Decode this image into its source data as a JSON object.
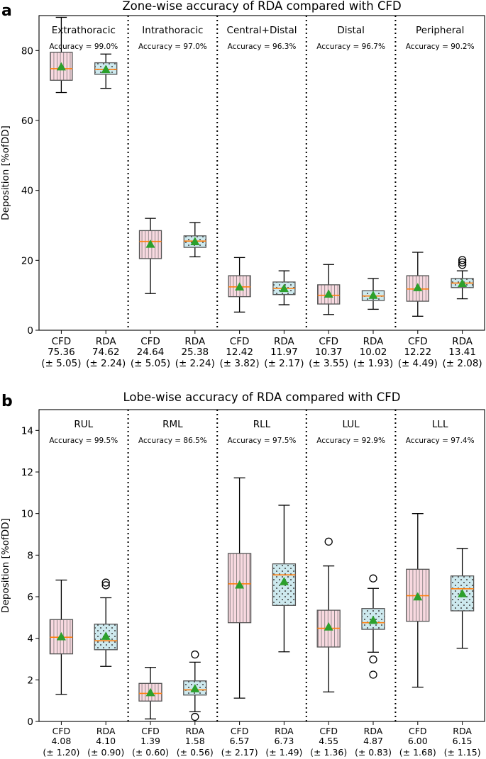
{
  "colors": {
    "cfd_fill": "#f8d9e0",
    "rda_fill": "#cde9ee",
    "median": "#ff7f0e",
    "mean": "#2ca02c",
    "pattern": "#555555"
  },
  "chart_data": [
    {
      "type": "box",
      "panel_letter": "a",
      "title": "Zone-wise accuracy of RDA compared with CFD",
      "ylabel": "Deposition [%ofDD]",
      "ylim": [
        0,
        90
      ],
      "yticks": [
        "0",
        "20",
        "40",
        "60",
        "80"
      ],
      "ytick_values": [
        0,
        20,
        40,
        60,
        80
      ],
      "groups": [
        {
          "name": "Extrathoracic",
          "accuracy": "Accuracy = 99.0%",
          "boxes": [
            {
              "label": "CFD",
              "value": "75.36",
              "sd": "(± 5.05)",
              "q1": 71.5,
              "q3": 79.5,
              "median": 74.8,
              "mean": 75.36,
              "whisker_low": 68,
              "whisker_high": 89.5,
              "outliers": []
            },
            {
              "label": "RDA",
              "value": "74.62",
              "sd": "(± 2.24)",
              "q1": 73.2,
              "q3": 76.5,
              "median": 74.6,
              "mean": 74.62,
              "whisker_low": 69.2,
              "whisker_high": 79,
              "outliers": []
            }
          ]
        },
        {
          "name": "Intrathoracic",
          "accuracy": "Accuracy = 97.0%",
          "boxes": [
            {
              "label": "CFD",
              "value": "24.64",
              "sd": "(± 5.05)",
              "q1": 20.5,
              "q3": 28.5,
              "median": 25.4,
              "mean": 24.64,
              "whisker_low": 10.5,
              "whisker_high": 32,
              "outliers": []
            },
            {
              "label": "RDA",
              "value": "25.38",
              "sd": "(± 2.24)",
              "q1": 23.7,
              "q3": 27,
              "median": 25.5,
              "mean": 25.38,
              "whisker_low": 21,
              "whisker_high": 30.8,
              "outliers": []
            }
          ]
        },
        {
          "name": "Central+Distal",
          "accuracy": "Accuracy = 96.3%",
          "boxes": [
            {
              "label": "CFD",
              "value": "12.42",
              "sd": "(± 3.82)",
              "q1": 9.6,
              "q3": 15.6,
              "median": 12.4,
              "mean": 12.42,
              "whisker_low": 5.2,
              "whisker_high": 20.8,
              "outliers": []
            },
            {
              "label": "RDA",
              "value": "11.97",
              "sd": "(± 2.17)",
              "q1": 10.2,
              "q3": 13.8,
              "median": 12.0,
              "mean": 11.97,
              "whisker_low": 7.3,
              "whisker_high": 17,
              "outliers": []
            }
          ]
        },
        {
          "name": "Distal",
          "accuracy": "Accuracy = 96.7%",
          "boxes": [
            {
              "label": "CFD",
              "value": "10.37",
              "sd": "(± 3.55)",
              "q1": 7.5,
              "q3": 13,
              "median": 10.0,
              "mean": 10.37,
              "whisker_low": 4.5,
              "whisker_high": 18.8,
              "outliers": []
            },
            {
              "label": "RDA",
              "value": "10.02",
              "sd": "(± 1.93)",
              "q1": 8.5,
              "q3": 11.3,
              "median": 9.8,
              "mean": 10.02,
              "whisker_low": 6.0,
              "whisker_high": 14.8,
              "outliers": []
            }
          ]
        },
        {
          "name": "Peripheral",
          "accuracy": "Accuracy = 90.2%",
          "boxes": [
            {
              "label": "CFD",
              "value": "12.22",
              "sd": "(± 4.49)",
              "q1": 8.3,
              "q3": 15.6,
              "median": 11.8,
              "mean": 12.22,
              "whisker_low": 4.0,
              "whisker_high": 22.3,
              "outliers": []
            },
            {
              "label": "RDA",
              "value": "13.41",
              "sd": "(± 2.08)",
              "q1": 12.2,
              "q3": 14.8,
              "median": 13.5,
              "mean": 13.41,
              "whisker_low": 9.0,
              "whisker_high": 17,
              "outliers": [
                18.7,
                19.4,
                20.1
              ]
            }
          ]
        }
      ]
    },
    {
      "type": "box",
      "panel_letter": "b",
      "title": "Lobe-wise accuracy of RDA compared with CFD",
      "ylabel": "Deposition [%ofDD]",
      "ylim": [
        0,
        15
      ],
      "yticks": [
        "0",
        "2",
        "4",
        "6",
        "8",
        "10",
        "12",
        "14"
      ],
      "ytick_values": [
        0,
        2,
        4,
        6,
        8,
        10,
        12,
        14
      ],
      "groups": [
        {
          "name": "RUL",
          "accuracy": "Accuracy = 99.5%",
          "boxes": [
            {
              "label": "CFD",
              "value": "4.08",
              "sd": "(± 1.20)",
              "q1": 3.25,
              "q3": 4.9,
              "median": 4.05,
              "mean": 4.08,
              "whisker_low": 1.3,
              "whisker_high": 6.8,
              "outliers": []
            },
            {
              "label": "RDA",
              "value": "4.10",
              "sd": "(± 0.90)",
              "q1": 3.45,
              "q3": 4.68,
              "median": 3.88,
              "mean": 4.1,
              "whisker_low": 2.65,
              "whisker_high": 5.95,
              "outliers": [
                6.55,
                6.68
              ]
            }
          ]
        },
        {
          "name": "RML",
          "accuracy": "Accuracy = 86.5%",
          "boxes": [
            {
              "label": "CFD",
              "value": "1.39",
              "sd": "(± 0.60)",
              "q1": 0.98,
              "q3": 1.83,
              "median": 1.35,
              "mean": 1.39,
              "whisker_low": 0.12,
              "whisker_high": 2.6,
              "outliers": []
            },
            {
              "label": "RDA",
              "value": "1.58",
              "sd": "(± 0.56)",
              "q1": 1.27,
              "q3": 1.95,
              "median": 1.52,
              "mean": 1.58,
              "whisker_low": 0.47,
              "whisker_high": 2.85,
              "outliers": [
                0.22,
                3.22
              ]
            }
          ]
        },
        {
          "name": "RLL",
          "accuracy": "Accuracy = 97.5%",
          "boxes": [
            {
              "label": "CFD",
              "value": "6.57",
              "sd": "(± 2.17)",
              "q1": 4.75,
              "q3": 8.08,
              "median": 6.62,
              "mean": 6.57,
              "whisker_low": 1.12,
              "whisker_high": 11.72,
              "outliers": []
            },
            {
              "label": "RDA",
              "value": "6.73",
              "sd": "(± 1.49)",
              "q1": 5.58,
              "q3": 7.58,
              "median": 7.05,
              "mean": 6.73,
              "whisker_low": 3.35,
              "whisker_high": 10.4,
              "outliers": []
            }
          ]
        },
        {
          "name": "LUL",
          "accuracy": "Accuracy = 92.9%",
          "boxes": [
            {
              "label": "CFD",
              "value": "4.55",
              "sd": "(± 1.36)",
              "q1": 3.58,
              "q3": 5.35,
              "median": 4.48,
              "mean": 4.55,
              "whisker_low": 1.42,
              "whisker_high": 7.48,
              "outliers": [
                8.65
              ]
            },
            {
              "label": "RDA",
              "value": "4.87",
              "sd": "(± 0.83)",
              "q1": 4.43,
              "q3": 5.43,
              "median": 4.75,
              "mean": 4.87,
              "whisker_low": 3.33,
              "whisker_high": 6.4,
              "outliers": [
                2.25,
                2.98,
                6.88
              ]
            }
          ]
        },
        {
          "name": "LLL",
          "accuracy": "Accuracy = 97.4%",
          "boxes": [
            {
              "label": "CFD",
              "value": "6.00",
              "sd": "(± 1.68)",
              "q1": 4.82,
              "q3": 7.32,
              "median": 6.05,
              "mean": 6.0,
              "whisker_low": 1.65,
              "whisker_high": 10.0,
              "outliers": []
            },
            {
              "label": "RDA",
              "value": "6.15",
              "sd": "(± 1.15)",
              "q1": 5.32,
              "q3": 7.0,
              "median": 6.38,
              "mean": 6.15,
              "whisker_low": 3.52,
              "whisker_high": 8.32,
              "outliers": []
            }
          ]
        }
      ]
    }
  ]
}
